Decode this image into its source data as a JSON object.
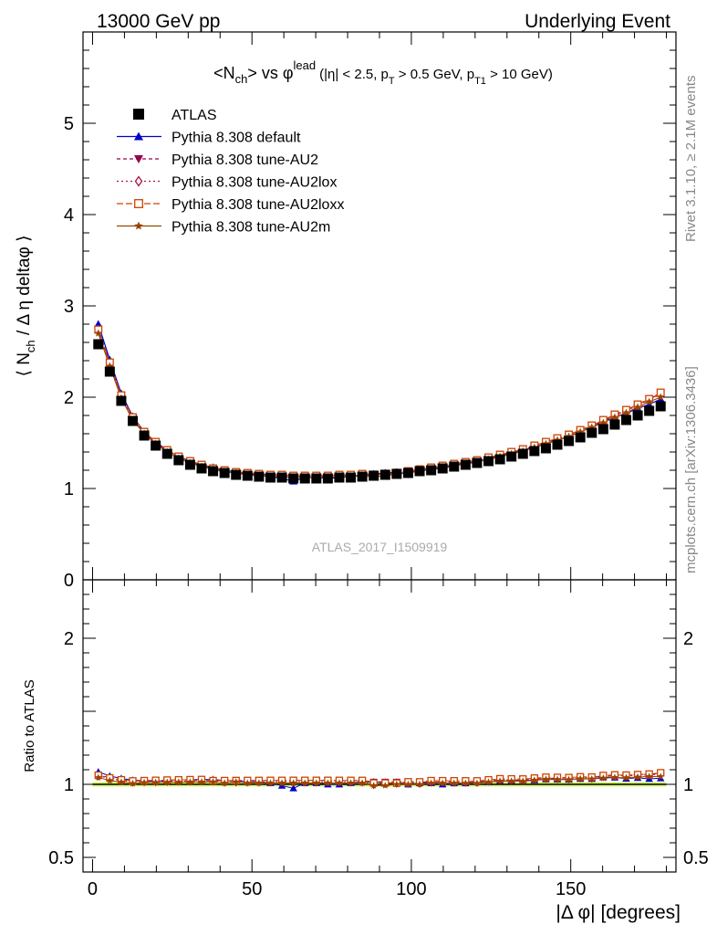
{
  "header": {
    "left": "13000 GeV pp",
    "right": "Underlying Event"
  },
  "side_labels": {
    "rivet": "Rivet 3.1.10, ≥ 2.1M events",
    "mcplots": "mcplots.cern.ch [arXiv:1306.3436]"
  },
  "watermark": "ATLAS_2017_I1509919",
  "colors": {
    "atlas": "#000000",
    "default": "#0000cc",
    "au2": "#99004c",
    "au2lox": "#aa1144",
    "au2loxx": "#cc4400",
    "au2m": "#994400",
    "band_green": "#ccff66",
    "band_yellow": "#ffff66"
  },
  "chart_data": [
    {
      "type": "scatter",
      "title_parts": {
        "prefix": "<N",
        "sub1": "ch",
        "mid": "> vs φ",
        "sup": "lead",
        "cuts_a": "(|η| < 2.5, p",
        "sub2": "T",
        "cuts_b": " > 0.5 GeV, p",
        "sub3": "T1",
        "cuts_c": " > 10 GeV)"
      },
      "ylabel_parts": {
        "a": "⟨ N",
        "sub": "ch",
        "b": " / Δ η deltaφ ⟩"
      },
      "xlim": [
        -3,
        183
      ],
      "ylim": [
        0,
        6
      ],
      "yticks": [
        {
          "v": 0,
          "label": "0"
        },
        {
          "v": 1,
          "label": "1"
        },
        {
          "v": 2,
          "label": "2"
        },
        {
          "v": 3,
          "label": "3"
        },
        {
          "v": 4,
          "label": "4"
        },
        {
          "v": 5,
          "label": "5"
        }
      ],
      "legend_position": "top-left",
      "x": [
        1.8,
        5.4,
        9,
        12.6,
        16.2,
        19.8,
        23.4,
        27,
        30.6,
        34.2,
        37.8,
        41.4,
        45,
        48.6,
        52.2,
        55.8,
        59.4,
        63,
        66.6,
        70.2,
        73.8,
        77.4,
        81,
        84.6,
        88.2,
        91.8,
        95.4,
        99,
        102.6,
        106.2,
        109.8,
        113.4,
        117,
        120.6,
        124.2,
        127.8,
        131.4,
        135,
        138.6,
        142.2,
        145.8,
        149.4,
        153,
        156.6,
        160.2,
        163.8,
        167.4,
        171,
        174.6,
        178.2
      ],
      "series": [
        {
          "name": "ATLAS",
          "key": "atlas",
          "marker": "square",
          "dash": "",
          "values": [
            2.58,
            2.28,
            1.96,
            1.74,
            1.58,
            1.47,
            1.38,
            1.31,
            1.26,
            1.22,
            1.19,
            1.17,
            1.15,
            1.14,
            1.13,
            1.12,
            1.12,
            1.11,
            1.11,
            1.11,
            1.11,
            1.12,
            1.12,
            1.13,
            1.14,
            1.15,
            1.16,
            1.17,
            1.19,
            1.2,
            1.22,
            1.24,
            1.26,
            1.28,
            1.3,
            1.32,
            1.35,
            1.38,
            1.41,
            1.44,
            1.48,
            1.52,
            1.56,
            1.61,
            1.65,
            1.7,
            1.75,
            1.8,
            1.85,
            1.9
          ]
        },
        {
          "name": "Pythia 8.308 default",
          "key": "default",
          "marker": "triangle-up",
          "dash": "",
          "values": [
            2.8,
            2.41,
            2.04,
            1.79,
            1.62,
            1.5,
            1.42,
            1.35,
            1.3,
            1.26,
            1.23,
            1.2,
            1.18,
            1.16,
            1.15,
            1.13,
            1.11,
            1.08,
            1.12,
            1.12,
            1.11,
            1.12,
            1.13,
            1.15,
            1.16,
            1.16,
            1.17,
            1.17,
            1.2,
            1.21,
            1.22,
            1.25,
            1.27,
            1.3,
            1.32,
            1.35,
            1.38,
            1.42,
            1.45,
            1.49,
            1.53,
            1.57,
            1.62,
            1.67,
            1.73,
            1.78,
            1.82,
            1.88,
            1.92,
            1.98
          ]
        },
        {
          "name": "Pythia 8.308 tune-AU2",
          "key": "au2",
          "marker": "triangle-down",
          "dash": "4,3",
          "values": [
            2.75,
            2.38,
            2.02,
            1.78,
            1.62,
            1.51,
            1.42,
            1.35,
            1.3,
            1.25,
            1.22,
            1.2,
            1.18,
            1.17,
            1.16,
            1.15,
            1.15,
            1.14,
            1.14,
            1.14,
            1.14,
            1.15,
            1.15,
            1.16,
            1.16,
            1.17,
            1.18,
            1.19,
            1.21,
            1.22,
            1.24,
            1.26,
            1.28,
            1.31,
            1.33,
            1.36,
            1.39,
            1.43,
            1.46,
            1.5,
            1.54,
            1.59,
            1.64,
            1.69,
            1.74,
            1.8,
            1.86,
            1.92,
            1.98,
            2.04
          ]
        },
        {
          "name": "Pythia 8.308 tune-AU2lox",
          "key": "au2lox",
          "marker": "diamond-open",
          "dash": "2,3",
          "values": [
            2.73,
            2.37,
            2.01,
            1.77,
            1.61,
            1.5,
            1.41,
            1.34,
            1.29,
            1.25,
            1.22,
            1.19,
            1.17,
            1.16,
            1.15,
            1.14,
            1.14,
            1.13,
            1.13,
            1.13,
            1.13,
            1.14,
            1.14,
            1.15,
            1.14,
            1.16,
            1.17,
            1.18,
            1.2,
            1.22,
            1.24,
            1.26,
            1.28,
            1.3,
            1.33,
            1.36,
            1.39,
            1.42,
            1.46,
            1.5,
            1.54,
            1.58,
            1.63,
            1.68,
            1.74,
            1.8,
            1.85,
            1.91,
            1.97,
            2.03
          ]
        },
        {
          "name": "Pythia 8.308 tune-AU2loxx",
          "key": "au2loxx",
          "marker": "square-open",
          "dash": "7,3",
          "values": [
            2.74,
            2.38,
            2.02,
            1.78,
            1.62,
            1.51,
            1.42,
            1.35,
            1.3,
            1.26,
            1.22,
            1.2,
            1.18,
            1.17,
            1.16,
            1.15,
            1.15,
            1.14,
            1.14,
            1.14,
            1.14,
            1.15,
            1.15,
            1.16,
            1.15,
            1.16,
            1.17,
            1.19,
            1.21,
            1.23,
            1.25,
            1.27,
            1.29,
            1.31,
            1.34,
            1.37,
            1.4,
            1.43,
            1.47,
            1.51,
            1.55,
            1.59,
            1.64,
            1.69,
            1.75,
            1.81,
            1.86,
            1.92,
            1.98,
            2.05
          ]
        },
        {
          "name": "Pythia 8.308 tune-AU2m",
          "key": "au2m",
          "marker": "star",
          "dash": "",
          "values": [
            2.7,
            2.34,
            1.99,
            1.75,
            1.6,
            1.49,
            1.4,
            1.33,
            1.28,
            1.24,
            1.21,
            1.18,
            1.17,
            1.15,
            1.14,
            1.13,
            1.13,
            1.12,
            1.12,
            1.12,
            1.12,
            1.13,
            1.13,
            1.14,
            1.13,
            1.14,
            1.16,
            1.17,
            1.19,
            1.21,
            1.23,
            1.25,
            1.27,
            1.29,
            1.32,
            1.35,
            1.38,
            1.41,
            1.45,
            1.49,
            1.53,
            1.57,
            1.62,
            1.67,
            1.72,
            1.78,
            1.83,
            1.89,
            1.95,
            2.0
          ]
        }
      ]
    },
    {
      "type": "scatter",
      "ylabel": "Ratio to ATLAS",
      "xlabel": "|Δ φ| [degrees]",
      "xlim": [
        -3,
        183
      ],
      "ylim": [
        0.4,
        2.4
      ],
      "xticks": [
        {
          "v": 0,
          "label": "0"
        },
        {
          "v": 50,
          "label": "50"
        },
        {
          "v": 100,
          "label": "100"
        },
        {
          "v": 150,
          "label": "150"
        }
      ],
      "yticks": [
        {
          "v": 0.5,
          "label": "0.5"
        },
        {
          "v": 1,
          "label": "1"
        },
        {
          "v": 2,
          "label": "2"
        }
      ],
      "reference_line": 1.0
    }
  ]
}
